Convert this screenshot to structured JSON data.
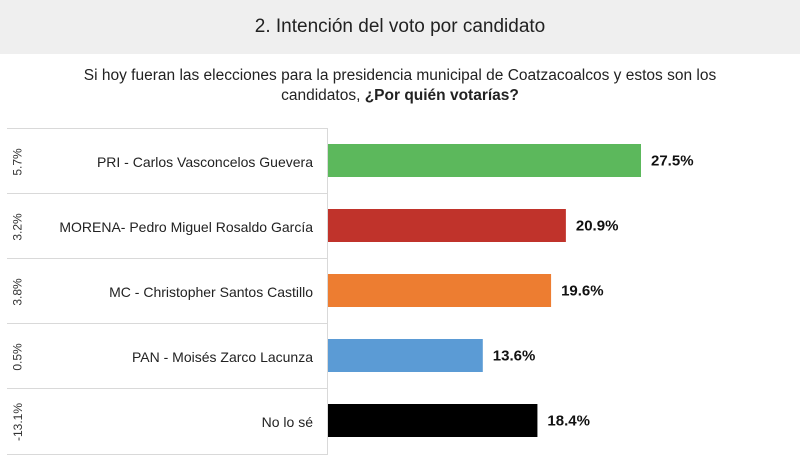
{
  "header": {
    "title": "2. Intención del voto por candidato"
  },
  "question": {
    "text": "Si hoy fueran las elecciones para la presidencia municipal de Coatzacoalcos y estos son los candidatos,",
    "bold": "¿Por quién votarías?"
  },
  "chart_data": {
    "type": "bar",
    "orientation": "horizontal",
    "title": "2. Intención del voto por candidato",
    "categories": [
      "PRI - Carlos Vasconcelos Guevera",
      "MORENA- Pedro Miguel Rosaldo García",
      "MC - Christopher Santos Castillo",
      "PAN - Moisés Zarco Lacunza",
      "No lo sé"
    ],
    "values": [
      27.5,
      20.9,
      19.6,
      13.6,
      18.4
    ],
    "value_labels": [
      "27.5%",
      "20.9%",
      "19.6%",
      "13.6%",
      "18.4%"
    ],
    "changes": [
      "5.7%",
      "3.2%",
      "3.8%",
      "0.5%",
      "-13.1%"
    ],
    "colors": [
      "#5cb85c",
      "#c0332b",
      "#ed7d31",
      "#5b9bd5",
      "#000000"
    ],
    "xlim": [
      0,
      27.5
    ],
    "grid": false,
    "legend": "none"
  }
}
